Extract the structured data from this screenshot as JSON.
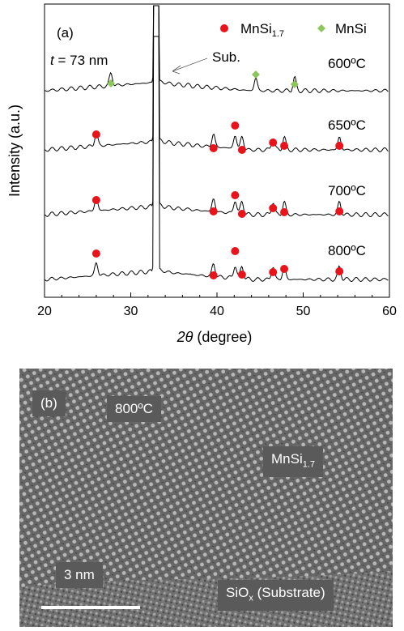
{
  "panel_a": {
    "label": "(a)",
    "thickness_italic": "t",
    "thickness_rest": " = 73 nm",
    "substrate_label": "Sub.",
    "legend": [
      {
        "marker": "circle",
        "color": "#e8141b",
        "main": "MnSi",
        "sub": "1.7"
      },
      {
        "marker": "diamond",
        "color": "#8cc65c",
        "main": "MnSi",
        "sub": ""
      }
    ]
  },
  "chart_data": {
    "type": "line",
    "xlabel_italic": "2θ",
    "xlabel_rest": " (degree)",
    "ylabel": "Intensity (a.u.)",
    "xlim": [
      20,
      60
    ],
    "xticks": [
      20,
      30,
      40,
      50,
      60
    ],
    "substrate_peak_2theta": 33.0,
    "series": [
      {
        "name": "600ºC",
        "marker": "diamond",
        "peaks": [
          27.7,
          44.5,
          49.0
        ]
      },
      {
        "name": "650ºC",
        "marker": "circle",
        "peaks": [
          26.0,
          39.6,
          42.1,
          42.9,
          46.5,
          47.8,
          54.2
        ]
      },
      {
        "name": "700ºC",
        "marker": "circle",
        "peaks": [
          26.0,
          39.6,
          42.1,
          42.9,
          46.5,
          47.8,
          54.2
        ]
      },
      {
        "name": "800ºC",
        "marker": "circle",
        "peaks": [
          26.0,
          39.6,
          42.1,
          42.9,
          46.5,
          47.8,
          54.2
        ]
      }
    ]
  },
  "panel_b": {
    "label": "(b)",
    "temperature": "800ºC",
    "phase_main": "MnSi",
    "phase_sub": "1.7",
    "scale_label": "3 nm",
    "substrate_main": "SiO",
    "substrate_sub": "x",
    "substrate_rest": " (Substrate)"
  }
}
